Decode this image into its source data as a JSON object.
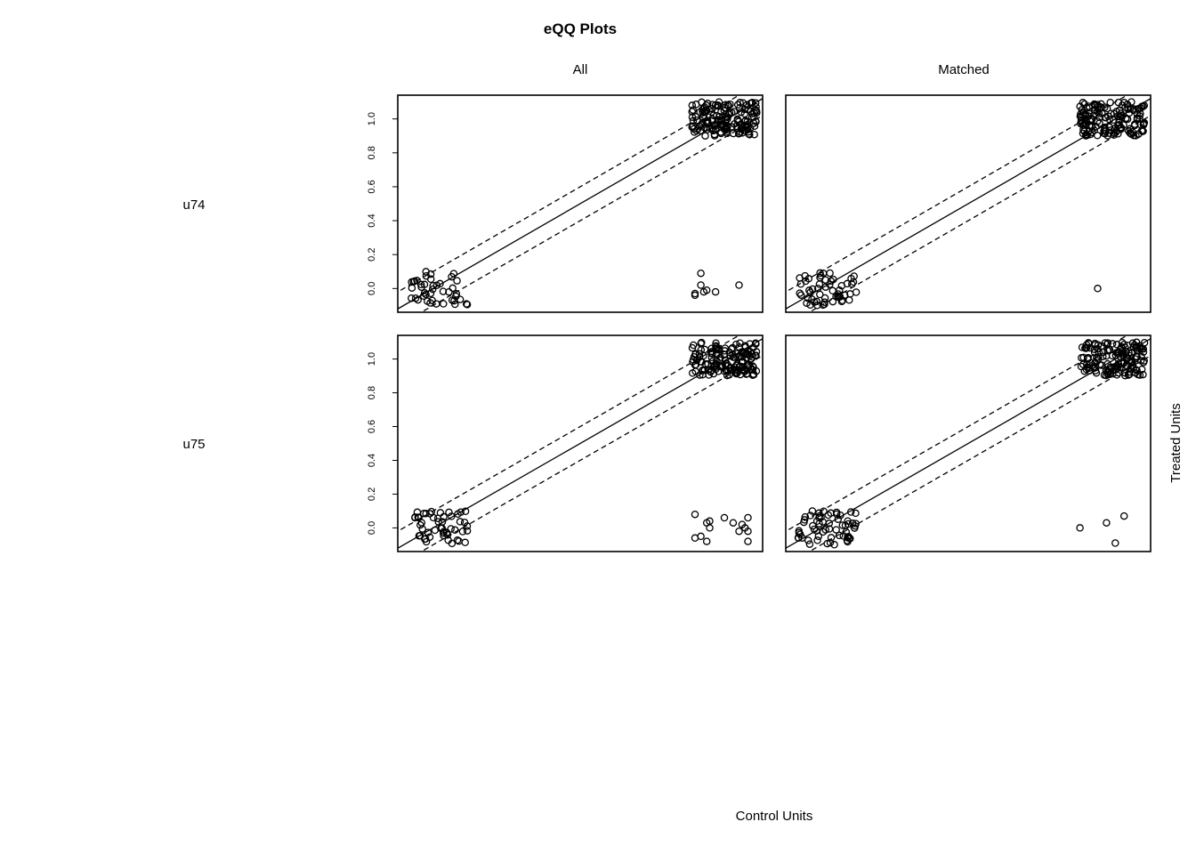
{
  "chart_data": {
    "type": "scatter",
    "title": "eQQ Plots",
    "column_labels": [
      "All",
      "Matched"
    ],
    "row_labels": [
      "u74",
      "u75"
    ],
    "xlabel": "Control Units",
    "ylabel": "Treated Units",
    "xlim": [
      -0.12,
      1.12
    ],
    "ylim": [
      -0.14,
      1.14
    ],
    "yticks": [
      "0.0",
      "0.2",
      "0.4",
      "0.6",
      "0.8",
      "1.0"
    ],
    "reference_lines": {
      "identity": "solid",
      "band_offset": 0.1,
      "band_style": "dashed"
    },
    "panels": [
      {
        "row": "u74",
        "column": "All",
        "clusters": [
          {
            "x_range": [
              -0.08,
              0.12
            ],
            "y_range": [
              -0.1,
              0.1
            ],
            "count": 42,
            "seed": 11
          },
          {
            "x_range": [
              0.88,
              1.1
            ],
            "y_range": [
              0.9,
              1.1
            ],
            "count": 150,
            "seed": 12
          }
        ],
        "points": [
          {
            "x": 0.89,
            "y": -0.04
          },
          {
            "x": 0.89,
            "y": -0.03
          },
          {
            "x": 0.91,
            "y": 0.02
          },
          {
            "x": 0.91,
            "y": 0.09
          },
          {
            "x": 0.92,
            "y": -0.02
          },
          {
            "x": 0.93,
            "y": -0.01
          },
          {
            "x": 0.96,
            "y": -0.02
          },
          {
            "x": 1.04,
            "y": 0.02
          }
        ]
      },
      {
        "row": "u74",
        "column": "Matched",
        "clusters": [
          {
            "x_range": [
              -0.08,
              0.12
            ],
            "y_range": [
              -0.1,
              0.1
            ],
            "count": 55,
            "seed": 21
          },
          {
            "x_range": [
              0.88,
              1.1
            ],
            "y_range": [
              0.9,
              1.1
            ],
            "count": 150,
            "seed": 22
          }
        ],
        "points": [
          {
            "x": 0.94,
            "y": 0.0
          }
        ]
      },
      {
        "row": "u75",
        "column": "All",
        "clusters": [
          {
            "x_range": [
              -0.07,
              0.12
            ],
            "y_range": [
              -0.1,
              0.1
            ],
            "count": 50,
            "seed": 31
          },
          {
            "x_range": [
              0.88,
              1.1
            ],
            "y_range": [
              0.9,
              1.1
            ],
            "count": 150,
            "seed": 32
          }
        ],
        "points": [
          {
            "x": 0.89,
            "y": 0.08
          },
          {
            "x": 0.89,
            "y": -0.06
          },
          {
            "x": 0.91,
            "y": -0.05
          },
          {
            "x": 0.93,
            "y": 0.03
          },
          {
            "x": 0.94,
            "y": 0.0
          },
          {
            "x": 0.94,
            "y": 0.04
          },
          {
            "x": 0.93,
            "y": -0.08
          },
          {
            "x": 0.99,
            "y": 0.06
          },
          {
            "x": 1.02,
            "y": 0.03
          },
          {
            "x": 1.04,
            "y": -0.02
          },
          {
            "x": 1.05,
            "y": 0.02
          },
          {
            "x": 1.07,
            "y": -0.02
          },
          {
            "x": 1.07,
            "y": 0.06
          },
          {
            "x": 1.07,
            "y": -0.08
          },
          {
            "x": 1.06,
            "y": 0.0
          }
        ]
      },
      {
        "row": "u75",
        "column": "Matched",
        "clusters": [
          {
            "x_range": [
              -0.08,
              0.12
            ],
            "y_range": [
              -0.1,
              0.1
            ],
            "count": 60,
            "seed": 41
          },
          {
            "x_range": [
              0.88,
              1.1
            ],
            "y_range": [
              0.9,
              1.1
            ],
            "count": 150,
            "seed": 42
          }
        ],
        "points": [
          {
            "x": 0.88,
            "y": 0.0
          },
          {
            "x": 0.97,
            "y": 0.03
          },
          {
            "x": 1.0,
            "y": -0.09
          },
          {
            "x": 1.03,
            "y": 0.07
          }
        ]
      }
    ]
  }
}
